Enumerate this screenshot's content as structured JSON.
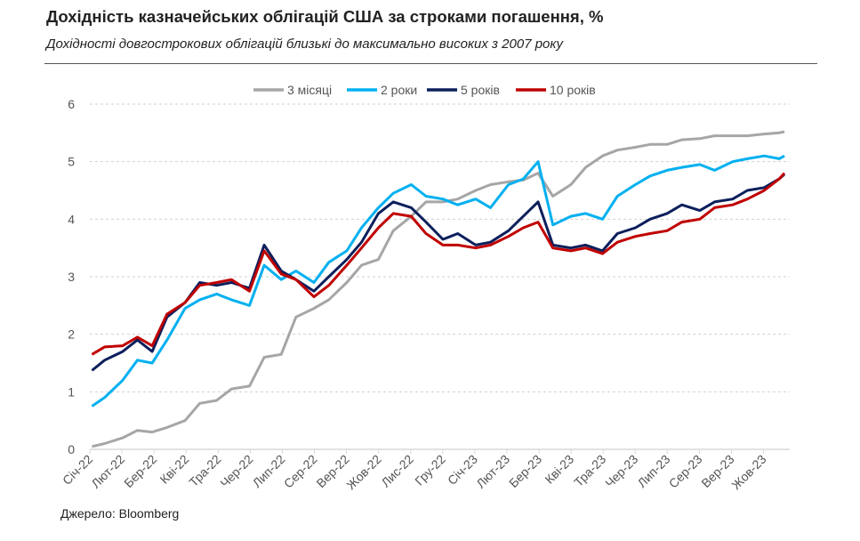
{
  "title": "Дохідність казначейських облігацій США за строками погашення, %",
  "subtitle": "Дохідності довгострокових облігацій близькі до максимально високих з 2007 року",
  "source": "Джерело: Bloomberg",
  "chart_data": {
    "type": "line",
    "title": "Дохідність казначейських облігацій США за строками погашення, %",
    "xlabel": "",
    "ylabel": "",
    "ylim": [
      0,
      6
    ],
    "yticks": [
      "0",
      "1",
      "2",
      "3",
      "4",
      "5",
      "6"
    ],
    "grid": true,
    "legend": "top-center",
    "xtick_labels": [
      "Січ-22",
      "Лют-22",
      "Бер-22",
      "Кві-22",
      "Тра-22",
      "Чер-22",
      "Лип-22",
      "Сер-22",
      "Вер-22",
      "Жов-22",
      "Лис-22",
      "Гру-22",
      "Січ-23",
      "Лют-23",
      "Бер-23",
      "Кві-23",
      "Тра-23",
      "Чер-23",
      "Лип-23",
      "Сер-23",
      "Вер-23",
      "Жов-23"
    ],
    "x": [
      "2022-01-03",
      "2022-01-15",
      "2022-02-01",
      "2022-02-15",
      "2022-03-01",
      "2022-03-15",
      "2022-04-01",
      "2022-04-15",
      "2022-05-01",
      "2022-05-15",
      "2022-06-01",
      "2022-06-15",
      "2022-07-01",
      "2022-07-15",
      "2022-08-01",
      "2022-08-15",
      "2022-09-01",
      "2022-09-15",
      "2022-10-01",
      "2022-10-15",
      "2022-11-01",
      "2022-11-15",
      "2022-12-01",
      "2022-12-15",
      "2023-01-01",
      "2023-01-15",
      "2023-02-01",
      "2023-02-15",
      "2023-03-01",
      "2023-03-15",
      "2023-04-01",
      "2023-04-15",
      "2023-05-01",
      "2023-05-15",
      "2023-06-01",
      "2023-06-15",
      "2023-07-01",
      "2023-07-15",
      "2023-08-01",
      "2023-08-15",
      "2023-09-01",
      "2023-09-15",
      "2023-10-01",
      "2023-10-15",
      "2023-10-20"
    ],
    "series": [
      {
        "name": "3 місяці",
        "color": "#a6a6a6",
        "values": [
          0.05,
          0.1,
          0.2,
          0.33,
          0.3,
          0.38,
          0.5,
          0.8,
          0.85,
          1.05,
          1.1,
          1.6,
          1.65,
          2.3,
          2.45,
          2.6,
          2.9,
          3.2,
          3.3,
          3.8,
          4.05,
          4.3,
          4.3,
          4.35,
          4.5,
          4.6,
          4.65,
          4.68,
          4.8,
          4.4,
          4.6,
          4.9,
          5.1,
          5.2,
          5.25,
          5.3,
          5.3,
          5.38,
          5.4,
          5.45,
          5.45,
          5.45,
          5.48,
          5.5,
          5.52
        ]
      },
      {
        "name": "2 роки",
        "color": "#00b0f0",
        "values": [
          0.75,
          0.9,
          1.2,
          1.55,
          1.5,
          1.9,
          2.45,
          2.6,
          2.7,
          2.6,
          2.5,
          3.2,
          2.95,
          3.1,
          2.9,
          3.25,
          3.45,
          3.85,
          4.2,
          4.45,
          4.6,
          4.4,
          4.35,
          4.25,
          4.35,
          4.2,
          4.6,
          4.7,
          5.0,
          3.9,
          4.05,
          4.1,
          4.0,
          4.4,
          4.6,
          4.75,
          4.85,
          4.9,
          4.95,
          4.85,
          5.0,
          5.05,
          5.1,
          5.05,
          5.1
        ]
      },
      {
        "name": "5 років",
        "color": "#0c1f5c",
        "values": [
          1.37,
          1.55,
          1.7,
          1.9,
          1.7,
          2.3,
          2.55,
          2.9,
          2.85,
          2.9,
          2.8,
          3.55,
          3.1,
          2.95,
          2.75,
          3.0,
          3.3,
          3.6,
          4.1,
          4.3,
          4.2,
          3.95,
          3.65,
          3.75,
          3.55,
          3.6,
          3.8,
          4.05,
          4.3,
          3.55,
          3.5,
          3.55,
          3.45,
          3.75,
          3.85,
          4.0,
          4.1,
          4.25,
          4.15,
          4.3,
          4.35,
          4.5,
          4.55,
          4.7,
          4.78
        ]
      },
      {
        "name": "10 років",
        "color": "#c00000",
        "values": [
          1.65,
          1.78,
          1.8,
          1.95,
          1.8,
          2.35,
          2.55,
          2.85,
          2.9,
          2.95,
          2.75,
          3.45,
          3.05,
          2.95,
          2.65,
          2.85,
          3.2,
          3.5,
          3.85,
          4.1,
          4.05,
          3.75,
          3.55,
          3.55,
          3.5,
          3.55,
          3.7,
          3.85,
          3.95,
          3.5,
          3.45,
          3.5,
          3.4,
          3.6,
          3.7,
          3.75,
          3.8,
          3.95,
          4.0,
          4.2,
          4.25,
          4.35,
          4.5,
          4.7,
          4.8
        ]
      }
    ]
  }
}
